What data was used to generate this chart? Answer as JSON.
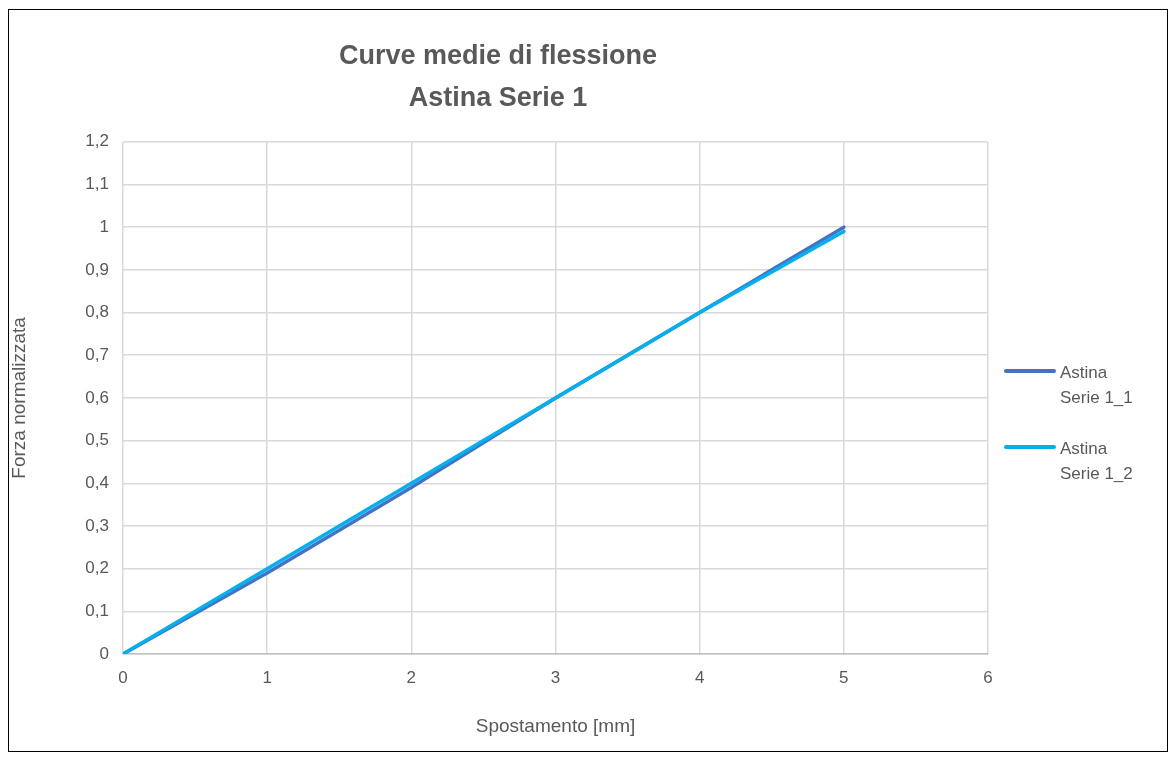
{
  "chart_data": {
    "type": "line",
    "title": "Curve medie di flessione",
    "subtitle": "Astina Serie 1",
    "xlabel": "Spostamento [mm]",
    "ylabel": "Forza normalizzata",
    "x": [
      0,
      1,
      2,
      3,
      4,
      5
    ],
    "series": [
      {
        "name": "Astina Serie 1_1",
        "color": "#4472c4",
        "values": [
          0,
          0.19,
          0.39,
          0.6,
          0.8,
          1.0
        ]
      },
      {
        "name": "Astina Serie 1_2",
        "color": "#00b0f0",
        "values": [
          0,
          0.2,
          0.4,
          0.6,
          0.8,
          0.99
        ]
      }
    ],
    "xlim": [
      0,
      6
    ],
    "xticks": [
      0,
      1,
      2,
      3,
      4,
      5,
      6
    ],
    "ylim": [
      0,
      1.2
    ],
    "yticks": [
      0,
      {
        "value": 0.1,
        "label": "0,1"
      },
      {
        "value": 0.2,
        "label": "0,2"
      },
      {
        "value": 0.3,
        "label": "0,3"
      },
      {
        "value": 0.4,
        "label": "0,4"
      },
      {
        "value": 0.5,
        "label": "0,5"
      },
      {
        "value": 0.6,
        "label": "0,6"
      },
      {
        "value": 0.7,
        "label": "0,7"
      },
      {
        "value": 0.8,
        "label": "0,8"
      },
      {
        "value": 0.9,
        "label": "0,9"
      },
      1,
      {
        "value": 1.1,
        "label": "1,1"
      },
      {
        "value": 1.2,
        "label": "1,2"
      }
    ],
    "grid": true,
    "legend": "right",
    "marker": "none",
    "line_style": "solid"
  }
}
